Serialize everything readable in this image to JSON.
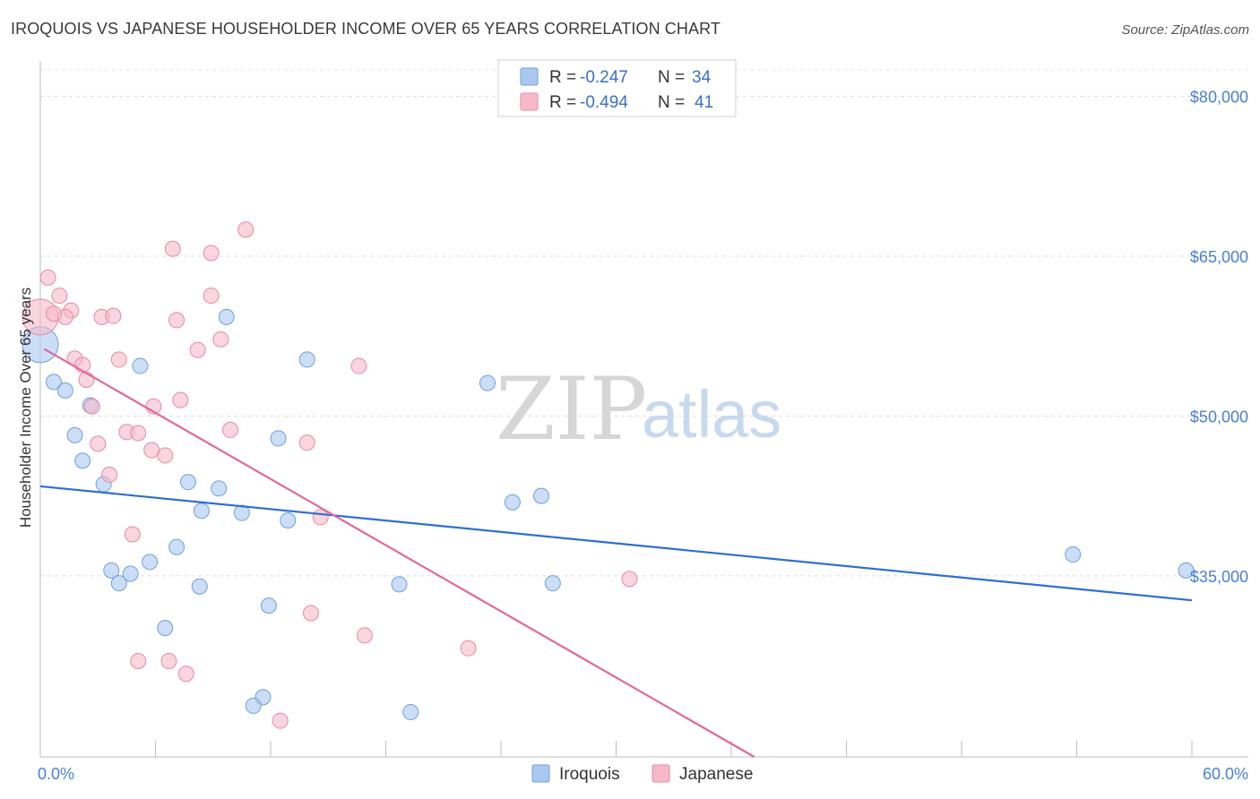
{
  "header": {
    "title": "IROQUOIS VS JAPANESE HOUSEHOLDER INCOME OVER 65 YEARS CORRELATION CHART",
    "source": "Source: ZipAtlas.com"
  },
  "watermark": {
    "zip": "ZIP",
    "atlas": "atlas"
  },
  "legend_top": [
    {
      "r_label": "R =",
      "r_value": "-0.247",
      "n_label": "N =",
      "n_value": "34",
      "color": "#a9c8f0"
    },
    {
      "r_label": "R =",
      "r_value": "-0.494",
      "n_label": "N =",
      "n_value": "41",
      "color": "#f5b9cb"
    }
  ],
  "legend_bottom": [
    {
      "label": "Iroquois",
      "color": "#a9c8f0"
    },
    {
      "label": "Japanese",
      "color": "#f5b9cb"
    }
  ],
  "chart_data": {
    "type": "scatter",
    "title": "IROQUOIS VS JAPANESE HOUSEHOLDER INCOME OVER 65 YEARS CORRELATION CHART",
    "xlabel": "",
    "ylabel": "Householder Income Over 65 years",
    "xlim": [
      0,
      60
    ],
    "ylim": [
      18000,
      83000
    ],
    "x_tick_labels": [
      "0.0%",
      "60.0%"
    ],
    "y_ticks": [
      35000,
      50000,
      65000,
      80000
    ],
    "y_tick_labels": [
      "$35,000",
      "$50,000",
      "$65,000",
      "$80,000"
    ],
    "grid": true,
    "legend_position": "top-center",
    "series": [
      {
        "name": "Iroquois",
        "color": "#a9c8f0",
        "stroke": "#6f9fdc",
        "line_color": "#2f6fd0",
        "trend": {
          "x": [
            0,
            60
          ],
          "y": [
            43400,
            32700
          ]
        },
        "points": [
          {
            "x": 0.0,
            "y": 56700,
            "big": true
          },
          {
            "x": 0.7,
            "y": 53200
          },
          {
            "x": 1.3,
            "y": 52400
          },
          {
            "x": 2.6,
            "y": 51000
          },
          {
            "x": 1.8,
            "y": 48200
          },
          {
            "x": 2.2,
            "y": 45800
          },
          {
            "x": 3.3,
            "y": 43600
          },
          {
            "x": 5.2,
            "y": 54700
          },
          {
            "x": 9.7,
            "y": 59300
          },
          {
            "x": 13.9,
            "y": 55300
          },
          {
            "x": 23.3,
            "y": 53100
          },
          {
            "x": 12.4,
            "y": 47900
          },
          {
            "x": 7.7,
            "y": 43800
          },
          {
            "x": 9.3,
            "y": 43200
          },
          {
            "x": 8.4,
            "y": 41100
          },
          {
            "x": 10.5,
            "y": 40900
          },
          {
            "x": 12.9,
            "y": 40200
          },
          {
            "x": 24.6,
            "y": 41900
          },
          {
            "x": 26.1,
            "y": 42500
          },
          {
            "x": 7.1,
            "y": 37700
          },
          {
            "x": 5.7,
            "y": 36300
          },
          {
            "x": 3.7,
            "y": 35500
          },
          {
            "x": 4.7,
            "y": 35200
          },
          {
            "x": 4.1,
            "y": 34300
          },
          {
            "x": 8.3,
            "y": 34000
          },
          {
            "x": 18.7,
            "y": 34200
          },
          {
            "x": 26.7,
            "y": 34300
          },
          {
            "x": 11.9,
            "y": 32200
          },
          {
            "x": 6.5,
            "y": 30100
          },
          {
            "x": 11.6,
            "y": 23600
          },
          {
            "x": 11.1,
            "y": 22800
          },
          {
            "x": 19.3,
            "y": 22200
          },
          {
            "x": 53.8,
            "y": 37000
          },
          {
            "x": 59.7,
            "y": 35500
          }
        ]
      },
      {
        "name": "Japanese",
        "color": "#f5b9cb",
        "stroke": "#e58aa6",
        "line_color": "#e0699a",
        "trend": {
          "x": [
            0.2,
            37.2
          ],
          "y": [
            56300,
            18000
          ]
        },
        "points": [
          {
            "x": 0.0,
            "y": 59300,
            "big": true
          },
          {
            "x": 0.4,
            "y": 63000
          },
          {
            "x": 1.0,
            "y": 61300
          },
          {
            "x": 1.6,
            "y": 59900
          },
          {
            "x": 1.3,
            "y": 59300
          },
          {
            "x": 0.7,
            "y": 59600
          },
          {
            "x": 3.2,
            "y": 59300
          },
          {
            "x": 3.8,
            "y": 59400
          },
          {
            "x": 6.9,
            "y": 65700
          },
          {
            "x": 8.9,
            "y": 65300
          },
          {
            "x": 10.7,
            "y": 67500
          },
          {
            "x": 8.9,
            "y": 61300
          },
          {
            "x": 7.1,
            "y": 59000
          },
          {
            "x": 9.4,
            "y": 57200
          },
          {
            "x": 8.2,
            "y": 56200
          },
          {
            "x": 1.8,
            "y": 55400
          },
          {
            "x": 2.2,
            "y": 54800
          },
          {
            "x": 4.1,
            "y": 55300
          },
          {
            "x": 16.6,
            "y": 54700
          },
          {
            "x": 2.4,
            "y": 53400
          },
          {
            "x": 2.7,
            "y": 50900
          },
          {
            "x": 7.3,
            "y": 51500
          },
          {
            "x": 5.9,
            "y": 50900
          },
          {
            "x": 4.5,
            "y": 48500
          },
          {
            "x": 5.1,
            "y": 48400
          },
          {
            "x": 3.0,
            "y": 47400
          },
          {
            "x": 5.8,
            "y": 46800
          },
          {
            "x": 6.5,
            "y": 46300
          },
          {
            "x": 9.9,
            "y": 48700
          },
          {
            "x": 13.9,
            "y": 47500
          },
          {
            "x": 3.6,
            "y": 44500
          },
          {
            "x": 14.6,
            "y": 40500
          },
          {
            "x": 4.8,
            "y": 38900
          },
          {
            "x": 30.7,
            "y": 34700
          },
          {
            "x": 14.1,
            "y": 31500
          },
          {
            "x": 16.9,
            "y": 29400
          },
          {
            "x": 22.3,
            "y": 28200
          },
          {
            "x": 5.1,
            "y": 27000
          },
          {
            "x": 6.7,
            "y": 27000
          },
          {
            "x": 7.6,
            "y": 25800
          },
          {
            "x": 12.5,
            "y": 21400
          }
        ]
      }
    ]
  }
}
